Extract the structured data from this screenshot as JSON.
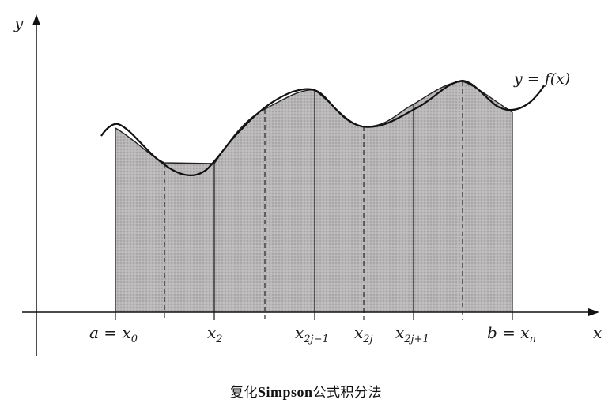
{
  "figure": {
    "axis_y": "y",
    "axis_x": "x",
    "curve_label": "y = f(x)",
    "ticks": [
      {
        "main": "a = x",
        "sub": "0"
      },
      {
        "main": "x",
        "sub": "2"
      },
      {
        "main": "x",
        "sub": "2j−1"
      },
      {
        "main": "x",
        "sub": "2j"
      },
      {
        "main": "x",
        "sub": "2j+1"
      },
      {
        "main": "b = x",
        "sub": "n"
      }
    ],
    "caption_cn1": "复化",
    "caption_latin": "Simpson",
    "caption_cn2": "公式积分法"
  }
}
